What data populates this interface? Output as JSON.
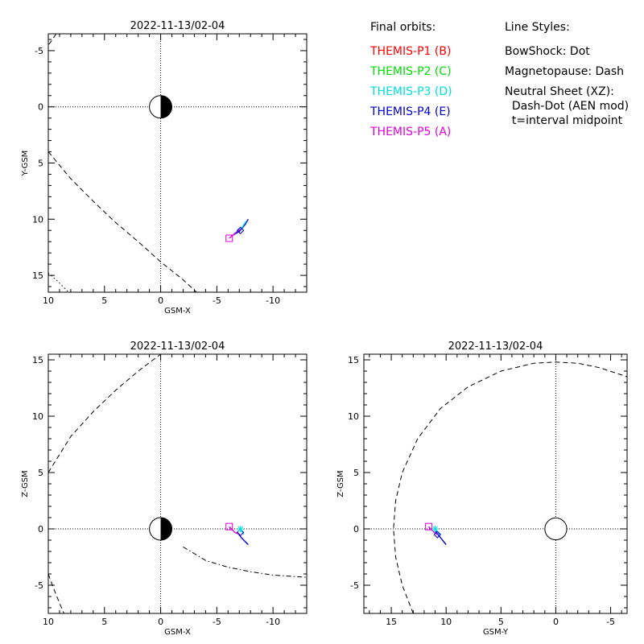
{
  "legend": {
    "orbits_title": "Final orbits:",
    "probes": [
      {
        "label": "THEMIS-P1 (B)",
        "color": "#ff0000"
      },
      {
        "label": "THEMIS-P2 (C)",
        "color": "#00dd00"
      },
      {
        "label": "THEMIS-P3 (D)",
        "color": "#00dddd"
      },
      {
        "label": "THEMIS-P4 (E)",
        "color": "#0000cc"
      },
      {
        "label": "THEMIS-P5 (A)",
        "color": "#dd00dd"
      }
    ],
    "styles_title": "Line Styles:",
    "styles": [
      "BowShock: Dot",
      "Magnetopause: Dash",
      "Neutral Sheet (XZ):",
      "  Dash-Dot (AEN mod)",
      "  t=interval midpoint"
    ]
  },
  "chart_data": [
    {
      "type": "line",
      "panel": "top-left",
      "title": "2022-11-13/02-04",
      "xlabel": "GSM-X",
      "ylabel": "Y-GSM",
      "xlim": [
        10,
        -13
      ],
      "ylim": [
        16.5,
        -6.5
      ],
      "xticks": [
        10,
        5,
        0,
        -5,
        -10
      ],
      "xtick_labels": [
        "10",
        "5",
        "0",
        "-5",
        "-10"
      ],
      "yticks": [
        -5,
        0,
        5,
        10,
        15
      ],
      "ytick_labels": [
        "-5",
        "0",
        "5",
        "10",
        "15"
      ],
      "earth": {
        "x": 0,
        "y": 0,
        "r": 1,
        "night_side": "right"
      },
      "series": [
        {
          "style": "dash",
          "color": "#000000",
          "points": [
            [
              10,
              4
            ],
            [
              8,
              6.4
            ],
            [
              6,
              8.4
            ],
            [
              4,
              10.3
            ],
            [
              2,
              12
            ],
            [
              0,
              13.8
            ],
            [
              -2,
              15.4
            ],
            [
              -3.2,
              16.5
            ]
          ]
        },
        {
          "style": "dash",
          "color": "#000000",
          "points": [
            [
              9.3,
              -6.5
            ],
            [
              9.7,
              -5.9
            ],
            [
              10,
              -5.5
            ]
          ]
        },
        {
          "style": "dot",
          "color": "#000000",
          "points": [
            [
              10,
              14.8
            ],
            [
              9.2,
              15.5
            ],
            [
              8.2,
              16.5
            ]
          ]
        },
        {
          "style": "solid",
          "color": "#0000cc",
          "points": [
            [
              -6.3,
              11.5
            ],
            [
              -7,
              11.1
            ],
            [
              -7.5,
              10.5
            ],
            [
              -7.8,
              10
            ]
          ]
        },
        {
          "style": "solid",
          "color": "#00dddd",
          "points": [
            [
              -6.5,
              11.3
            ],
            [
              -7.2,
              10.8
            ],
            [
              -7.6,
              10.2
            ]
          ]
        },
        {
          "style": "solid",
          "color": "#dd00dd",
          "points": [
            [
              -6.1,
              11.7
            ],
            [
              -6.7,
              11.2
            ],
            [
              -7.1,
              10.9
            ]
          ]
        }
      ],
      "markers": [
        {
          "shape": "square",
          "color": "#dd00dd",
          "x": -6.1,
          "y": 11.7
        },
        {
          "shape": "diamond",
          "color": "#0000cc",
          "x": -7.1,
          "y": 11.0
        }
      ]
    },
    {
      "type": "line",
      "panel": "bottom-left",
      "title": "2022-11-13/02-04",
      "xlabel": "GSM-X",
      "ylabel": "Z-GSM",
      "xlim": [
        10,
        -13
      ],
      "ylim": [
        -7.5,
        15.5
      ],
      "xticks": [
        10,
        5,
        0,
        -5,
        -10
      ],
      "xtick_labels": [
        "10",
        "5",
        "0",
        "-5",
        "-10"
      ],
      "yticks": [
        -5,
        0,
        5,
        10,
        15
      ],
      "ytick_labels": [
        "-5",
        "0",
        "5",
        "10",
        "15"
      ],
      "earth": {
        "x": 0,
        "y": 0,
        "r": 1,
        "night_side": "right"
      },
      "series": [
        {
          "style": "dash",
          "color": "#000000",
          "points": [
            [
              10,
              5
            ],
            [
              8,
              8.2
            ],
            [
              6,
              10.4
            ],
            [
              4,
              12.3
            ],
            [
              2,
              14
            ],
            [
              0,
              15.5
            ]
          ]
        },
        {
          "style": "dash",
          "color": "#000000",
          "points": [
            [
              10,
              -4
            ],
            [
              9.6,
              -5.1
            ],
            [
              9,
              -6.6
            ],
            [
              8.6,
              -7.5
            ]
          ]
        },
        {
          "style": "dashdot",
          "color": "#000000",
          "points": [
            [
              -2,
              -1.6
            ],
            [
              -4,
              -2.8
            ],
            [
              -6,
              -3.4
            ],
            [
              -8,
              -3.8
            ],
            [
              -10,
              -4.1
            ],
            [
              -13,
              -4.3
            ]
          ]
        },
        {
          "style": "solid",
          "color": "#0000cc",
          "points": [
            [
              -6.8,
              -0.3
            ],
            [
              -7.2,
              -0.8
            ],
            [
              -7.8,
              -1.4
            ]
          ]
        },
        {
          "style": "solid",
          "color": "#00dddd",
          "points": [
            [
              -7.1,
              0
            ],
            [
              -7.4,
              -0.5
            ]
          ]
        },
        {
          "style": "solid",
          "color": "#dd00dd",
          "points": [
            [
              -6.1,
              0.2
            ],
            [
              -6.6,
              -0.3
            ],
            [
              -7,
              -0.5
            ]
          ]
        }
      ],
      "markers": [
        {
          "shape": "square",
          "color": "#dd00dd",
          "x": -6.1,
          "y": 0.2
        },
        {
          "shape": "diamond",
          "color": "#0000cc",
          "x": -7.1,
          "y": -0.3
        },
        {
          "shape": "star",
          "color": "#00dddd",
          "x": -7.1,
          "y": 0
        }
      ]
    },
    {
      "type": "line",
      "panel": "bottom-right",
      "title": "2022-11-13/02-04",
      "xlabel": "GSM-Y",
      "ylabel": "Z-GSM",
      "xlim": [
        17.5,
        -6.5
      ],
      "ylim": [
        -7.5,
        15.5
      ],
      "xticks": [
        15,
        10,
        5,
        0,
        -5
      ],
      "xtick_labels": [
        "15",
        "10",
        "5",
        "0",
        "-5"
      ],
      "yticks": [
        -5,
        0,
        5,
        10,
        15
      ],
      "ytick_labels": [
        "-5",
        "0",
        "5",
        "10",
        "15"
      ],
      "earth": {
        "x": 0,
        "y": 0,
        "r": 1,
        "night_side": "none"
      },
      "series": [
        {
          "style": "dash",
          "color": "#000000",
          "points": [
            [
              13,
              -7.5
            ],
            [
              14,
              -5
            ],
            [
              14.6,
              -2.5
            ],
            [
              14.8,
              0
            ],
            [
              14.6,
              2.5
            ],
            [
              14,
              5
            ],
            [
              12.6,
              8
            ],
            [
              10.5,
              10.7
            ],
            [
              8,
              12.6
            ],
            [
              5,
              14
            ],
            [
              2,
              14.7
            ],
            [
              0,
              14.8
            ],
            [
              -2,
              14.7
            ],
            [
              -4,
              14.3
            ],
            [
              -6.5,
              13.5
            ]
          ]
        },
        {
          "style": "solid",
          "color": "#0000cc",
          "points": [
            [
              11,
              -0.2
            ],
            [
              10.5,
              -0.8
            ],
            [
              10,
              -1.4
            ]
          ]
        },
        {
          "style": "solid",
          "color": "#00dddd",
          "points": [
            [
              11,
              0
            ],
            [
              10.6,
              -0.5
            ]
          ]
        },
        {
          "style": "solid",
          "color": "#dd00dd",
          "points": [
            [
              11.6,
              0.2
            ],
            [
              11.1,
              -0.3
            ],
            [
              10.8,
              -0.5
            ]
          ]
        }
      ],
      "markers": [
        {
          "shape": "square",
          "color": "#dd00dd",
          "x": 11.6,
          "y": 0.2
        },
        {
          "shape": "diamond",
          "color": "#0000cc",
          "x": 10.8,
          "y": -0.5
        },
        {
          "shape": "star",
          "color": "#00dddd",
          "x": 11.0,
          "y": 0
        }
      ]
    }
  ]
}
